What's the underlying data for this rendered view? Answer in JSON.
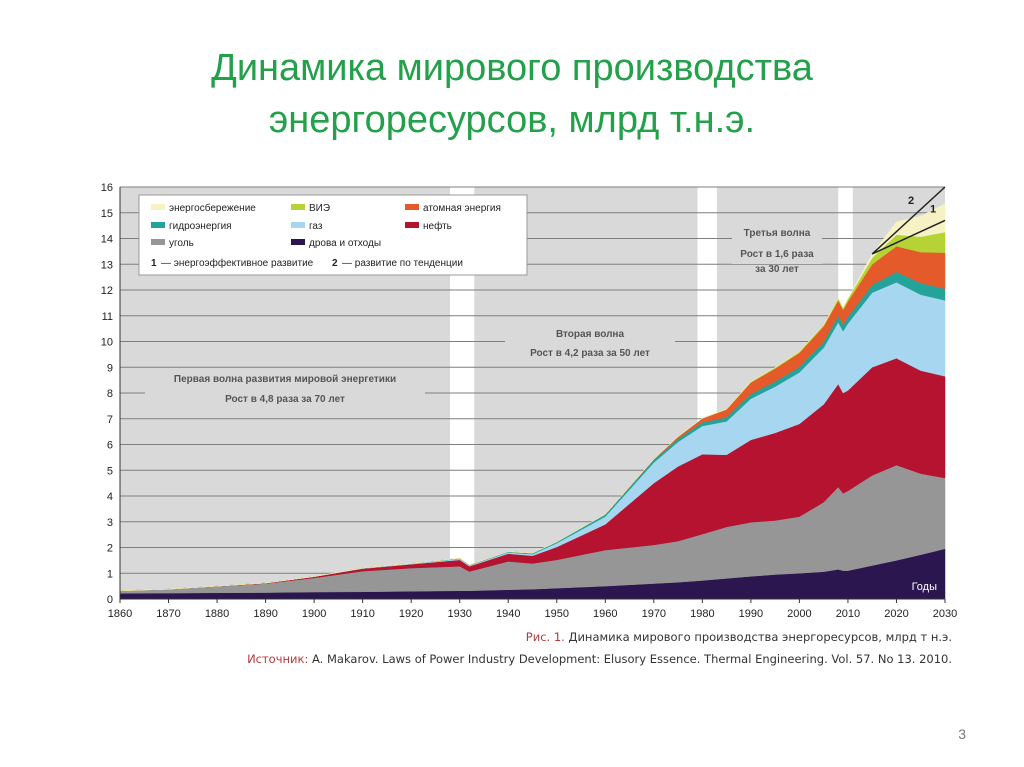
{
  "slide": {
    "title_line1": "Динамика мирового производства",
    "title_line2": "энергоресурсов, млрд т.н.э.",
    "figure_caption_label": "Рис. 1.",
    "figure_caption_text": "Динамика мирового производства энергоресурсов, млрд т н.э.",
    "source_label": "Источник:",
    "source_text": "A. Makarov. Laws of Power Industry Development: Elusory Essence. Thermal Engineering. Vol. 57. No 13. 2010.",
    "page_number": "3"
  },
  "chart_data": {
    "type": "area",
    "stacked": true,
    "xlabel": "Годы",
    "ylabel": "",
    "xlim": [
      1860,
      2030
    ],
    "ylim": [
      0,
      16
    ],
    "x_ticks": [
      1860,
      1870,
      1880,
      1890,
      1900,
      1910,
      1920,
      1930,
      1940,
      1950,
      1960,
      1970,
      1980,
      1990,
      2000,
      2010,
      2020,
      2030
    ],
    "y_ticks": [
      0,
      1,
      2,
      3,
      4,
      5,
      6,
      7,
      8,
      9,
      10,
      11,
      12,
      13,
      14,
      15,
      16
    ],
    "grid": "horizontal",
    "legend_position": "top-left",
    "legend": [
      {
        "label": "энергосбережение",
        "color": "#f7f2c4"
      },
      {
        "label": "ВИЭ",
        "color": "#b5d334"
      },
      {
        "label": "атомная энергия",
        "color": "#e55a2b"
      },
      {
        "label": "гидроэнергия",
        "color": "#24a39a"
      },
      {
        "label": "газ",
        "color": "#a7d6f0"
      },
      {
        "label": "нефть",
        "color": "#b5132f"
      },
      {
        "label": "уголь",
        "color": "#969696"
      },
      {
        "label": "дрова и отходы",
        "color": "#2b1650"
      }
    ],
    "scenario_legend": [
      {
        "num": "1",
        "text": "— энергоэффективное развитие"
      },
      {
        "num": "2",
        "text": "— развитие по тенденции"
      }
    ],
    "wave_periods": [
      {
        "from": 1860,
        "to": 1928,
        "title": "Первая волна развития мировой энергетики",
        "subtitle": "Рост в 4,8 раза за 70 лет"
      },
      {
        "from": 1933,
        "to": 1979,
        "title": "Вторая волна",
        "subtitle": "Рост в 4,2 раза за 50 лет"
      },
      {
        "from": 1983,
        "to": 2008,
        "title": "",
        "subtitle": ""
      },
      {
        "from": 2011,
        "to": 2030,
        "title": "Третья волна",
        "subtitle": "Рост в 1,6 раза за 30 лет"
      }
    ],
    "x": [
      1860,
      1870,
      1880,
      1890,
      1900,
      1910,
      1920,
      1930,
      1932,
      1940,
      1945,
      1950,
      1960,
      1970,
      1975,
      1980,
      1985,
      1990,
      1995,
      2000,
      2005,
      2008,
      2009,
      2010,
      2015,
      2020,
      2025,
      2030
    ],
    "series": [
      {
        "name": "дрова и отходы",
        "color": "#2b1650",
        "values": [
          0.22,
          0.23,
          0.24,
          0.25,
          0.27,
          0.28,
          0.3,
          0.32,
          0.32,
          0.36,
          0.38,
          0.42,
          0.5,
          0.6,
          0.65,
          0.72,
          0.8,
          0.88,
          0.95,
          1.0,
          1.06,
          1.15,
          1.1,
          1.1,
          1.3,
          1.5,
          1.72,
          1.95
        ]
      },
      {
        "name": "уголь",
        "color": "#969696",
        "values": [
          0.1,
          0.15,
          0.25,
          0.35,
          0.55,
          0.8,
          0.9,
          0.95,
          0.75,
          1.1,
          1.0,
          1.1,
          1.4,
          1.5,
          1.6,
          1.8,
          2.0,
          2.1,
          2.1,
          2.2,
          2.7,
          3.2,
          3.0,
          3.1,
          3.5,
          3.7,
          3.15,
          2.75
        ]
      },
      {
        "name": "нефть",
        "color": "#b5132f",
        "values": [
          0.0,
          0.0,
          0.01,
          0.02,
          0.05,
          0.1,
          0.15,
          0.25,
          0.2,
          0.3,
          0.3,
          0.5,
          1.0,
          2.4,
          2.9,
          3.1,
          2.8,
          3.2,
          3.4,
          3.6,
          3.8,
          4.0,
          3.9,
          3.9,
          4.2,
          4.15,
          4.0,
          3.95
        ]
      },
      {
        "name": "газ",
        "color": "#a7d6f0",
        "values": [
          0.0,
          0.0,
          0.0,
          0.0,
          0.0,
          0.01,
          0.02,
          0.04,
          0.03,
          0.05,
          0.06,
          0.15,
          0.3,
          0.8,
          0.95,
          1.1,
          1.3,
          1.6,
          1.8,
          2.0,
          2.2,
          2.4,
          2.4,
          2.6,
          2.9,
          2.95,
          2.95,
          2.95
        ]
      },
      {
        "name": "гидроэнергия",
        "color": "#24a39a",
        "values": [
          0.0,
          0.0,
          0.0,
          0.0,
          0.0,
          0.01,
          0.01,
          0.02,
          0.02,
          0.03,
          0.04,
          0.05,
          0.08,
          0.1,
          0.12,
          0.14,
          0.16,
          0.18,
          0.2,
          0.21,
          0.23,
          0.25,
          0.25,
          0.26,
          0.3,
          0.4,
          0.45,
          0.45
        ]
      },
      {
        "name": "атомная энергия",
        "color": "#e55a2b",
        "values": [
          0,
          0,
          0,
          0,
          0,
          0,
          0,
          0,
          0,
          0,
          0,
          0,
          0.01,
          0.03,
          0.08,
          0.15,
          0.3,
          0.45,
          0.5,
          0.55,
          0.6,
          0.6,
          0.58,
          0.6,
          0.8,
          1.0,
          1.2,
          1.4
        ]
      },
      {
        "name": "ВИЭ",
        "color": "#b5d334",
        "values": [
          0,
          0,
          0,
          0,
          0,
          0,
          0,
          0,
          0,
          0,
          0,
          0,
          0,
          0,
          0.01,
          0.01,
          0.02,
          0.03,
          0.04,
          0.05,
          0.06,
          0.08,
          0.08,
          0.1,
          0.25,
          0.45,
          0.6,
          0.8
        ]
      },
      {
        "name": "энергосбережение",
        "color": "#f7f2c4",
        "values": [
          0,
          0,
          0,
          0,
          0,
          0,
          0,
          0,
          0,
          0,
          0,
          0,
          0,
          0,
          0,
          0,
          0,
          0,
          0,
          0,
          0,
          0,
          0,
          0,
          0.15,
          0.5,
          0.8,
          1.1
        ]
      }
    ],
    "scenario_labels": [
      {
        "label": "1",
        "x": 2030,
        "y": 14.7
      },
      {
        "label": "2",
        "x": 2030,
        "y": 16.0
      }
    ]
  }
}
